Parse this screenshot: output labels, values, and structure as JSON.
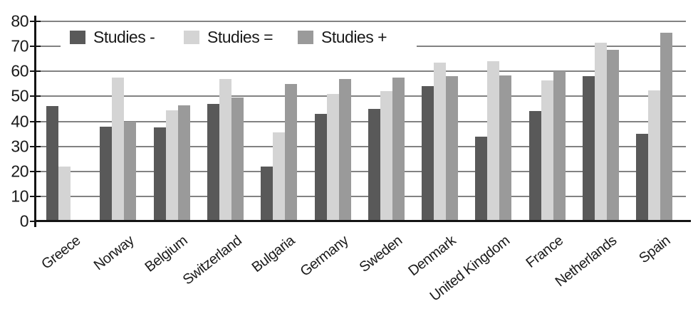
{
  "chart_data": {
    "type": "bar",
    "title": "",
    "xlabel": "",
    "ylabel": "",
    "categories": [
      "Greece",
      "Norway",
      "Belgium",
      "Switzerland",
      "Bulgaria",
      "Germany",
      "Sweden",
      "Denmark",
      "United Kingdom",
      "France",
      "Netherlands",
      "Spain"
    ],
    "series": [
      {
        "name": "Studies -",
        "color": "#595959",
        "values": [
          46,
          38,
          37.5,
          47,
          22,
          43,
          45,
          54,
          34,
          44,
          58,
          35
        ]
      },
      {
        "name": "Studies =",
        "color": "#d4d4d4",
        "values": [
          22,
          57.5,
          44.5,
          57,
          35.5,
          51,
          52,
          63.5,
          64,
          56.5,
          71.5,
          52.5
        ]
      },
      {
        "name": "Studies +",
        "color": "#9a9a9a",
        "values": [
          null,
          40,
          46.5,
          49.5,
          55,
          57,
          57.5,
          58,
          58.5,
          60,
          68.5,
          75.5
        ]
      }
    ],
    "ylim": [
      0,
      80
    ],
    "yticks": [
      0,
      10,
      20,
      30,
      40,
      50,
      60,
      70,
      80
    ],
    "grid": true,
    "legend_position": "top-left"
  },
  "colors": {
    "background": "#ffffff",
    "gridline": "#828282",
    "axis": "#141414",
    "text": "#1a1a1a"
  }
}
